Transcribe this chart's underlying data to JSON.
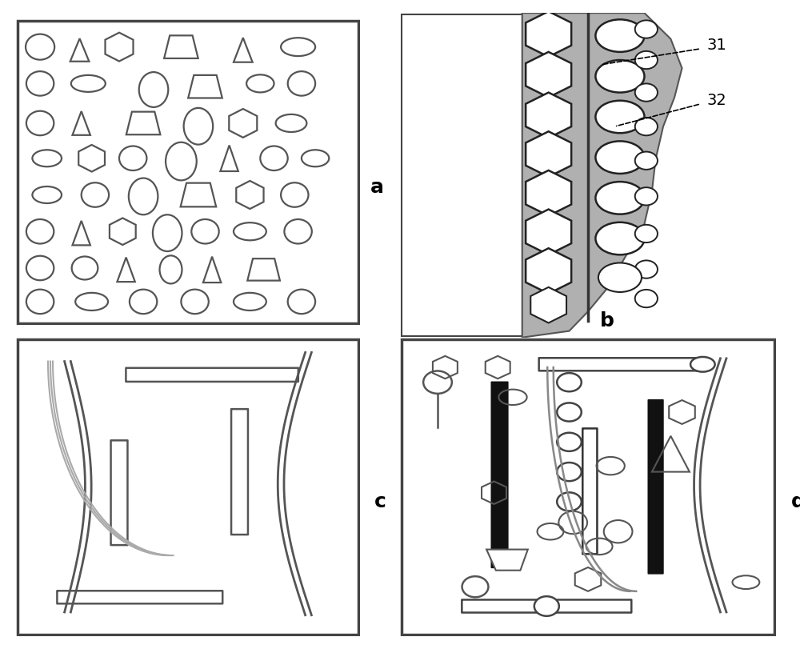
{
  "bg_color": "#ffffff",
  "border_color": "#444444",
  "shape_color": "#555555",
  "gray_dark": "#888888",
  "gray_med": "#aaaaaa",
  "gray_light": "#cccccc",
  "panel_a_label": "a",
  "panel_b_label": "b",
  "panel_c_label": "c",
  "panel_d_label": "d",
  "label_31": "31",
  "label_32": "32"
}
